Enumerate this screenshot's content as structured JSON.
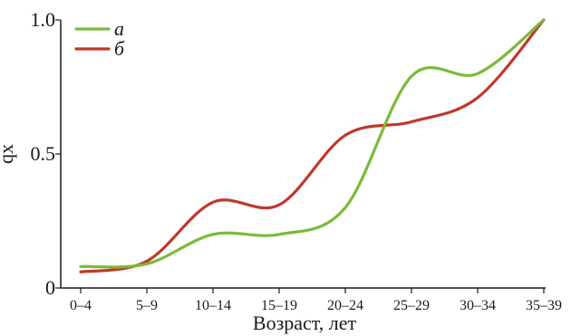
{
  "chart_data": {
    "type": "line",
    "xlabel": "Возраст, лет",
    "ylabel": "qx",
    "categories": [
      "0–4",
      "5–9",
      "10–14",
      "15–19",
      "20–24",
      "25–29",
      "30–34",
      "35–39"
    ],
    "ylim": [
      0,
      1.0
    ],
    "yticks": [
      0,
      0.5,
      1.0
    ],
    "ytick_labels": [
      "0",
      "0.5",
      "1.0"
    ],
    "grid": false,
    "legend_position": "top-left",
    "series": [
      {
        "name": "а",
        "color": "#7db93a",
        "values": [
          0.08,
          0.09,
          0.2,
          0.2,
          0.3,
          0.79,
          0.8,
          1.0
        ]
      },
      {
        "name": "б",
        "color": "#c0392b",
        "values": [
          0.06,
          0.1,
          0.32,
          0.31,
          0.57,
          0.62,
          0.71,
          1.0
        ]
      }
    ]
  }
}
